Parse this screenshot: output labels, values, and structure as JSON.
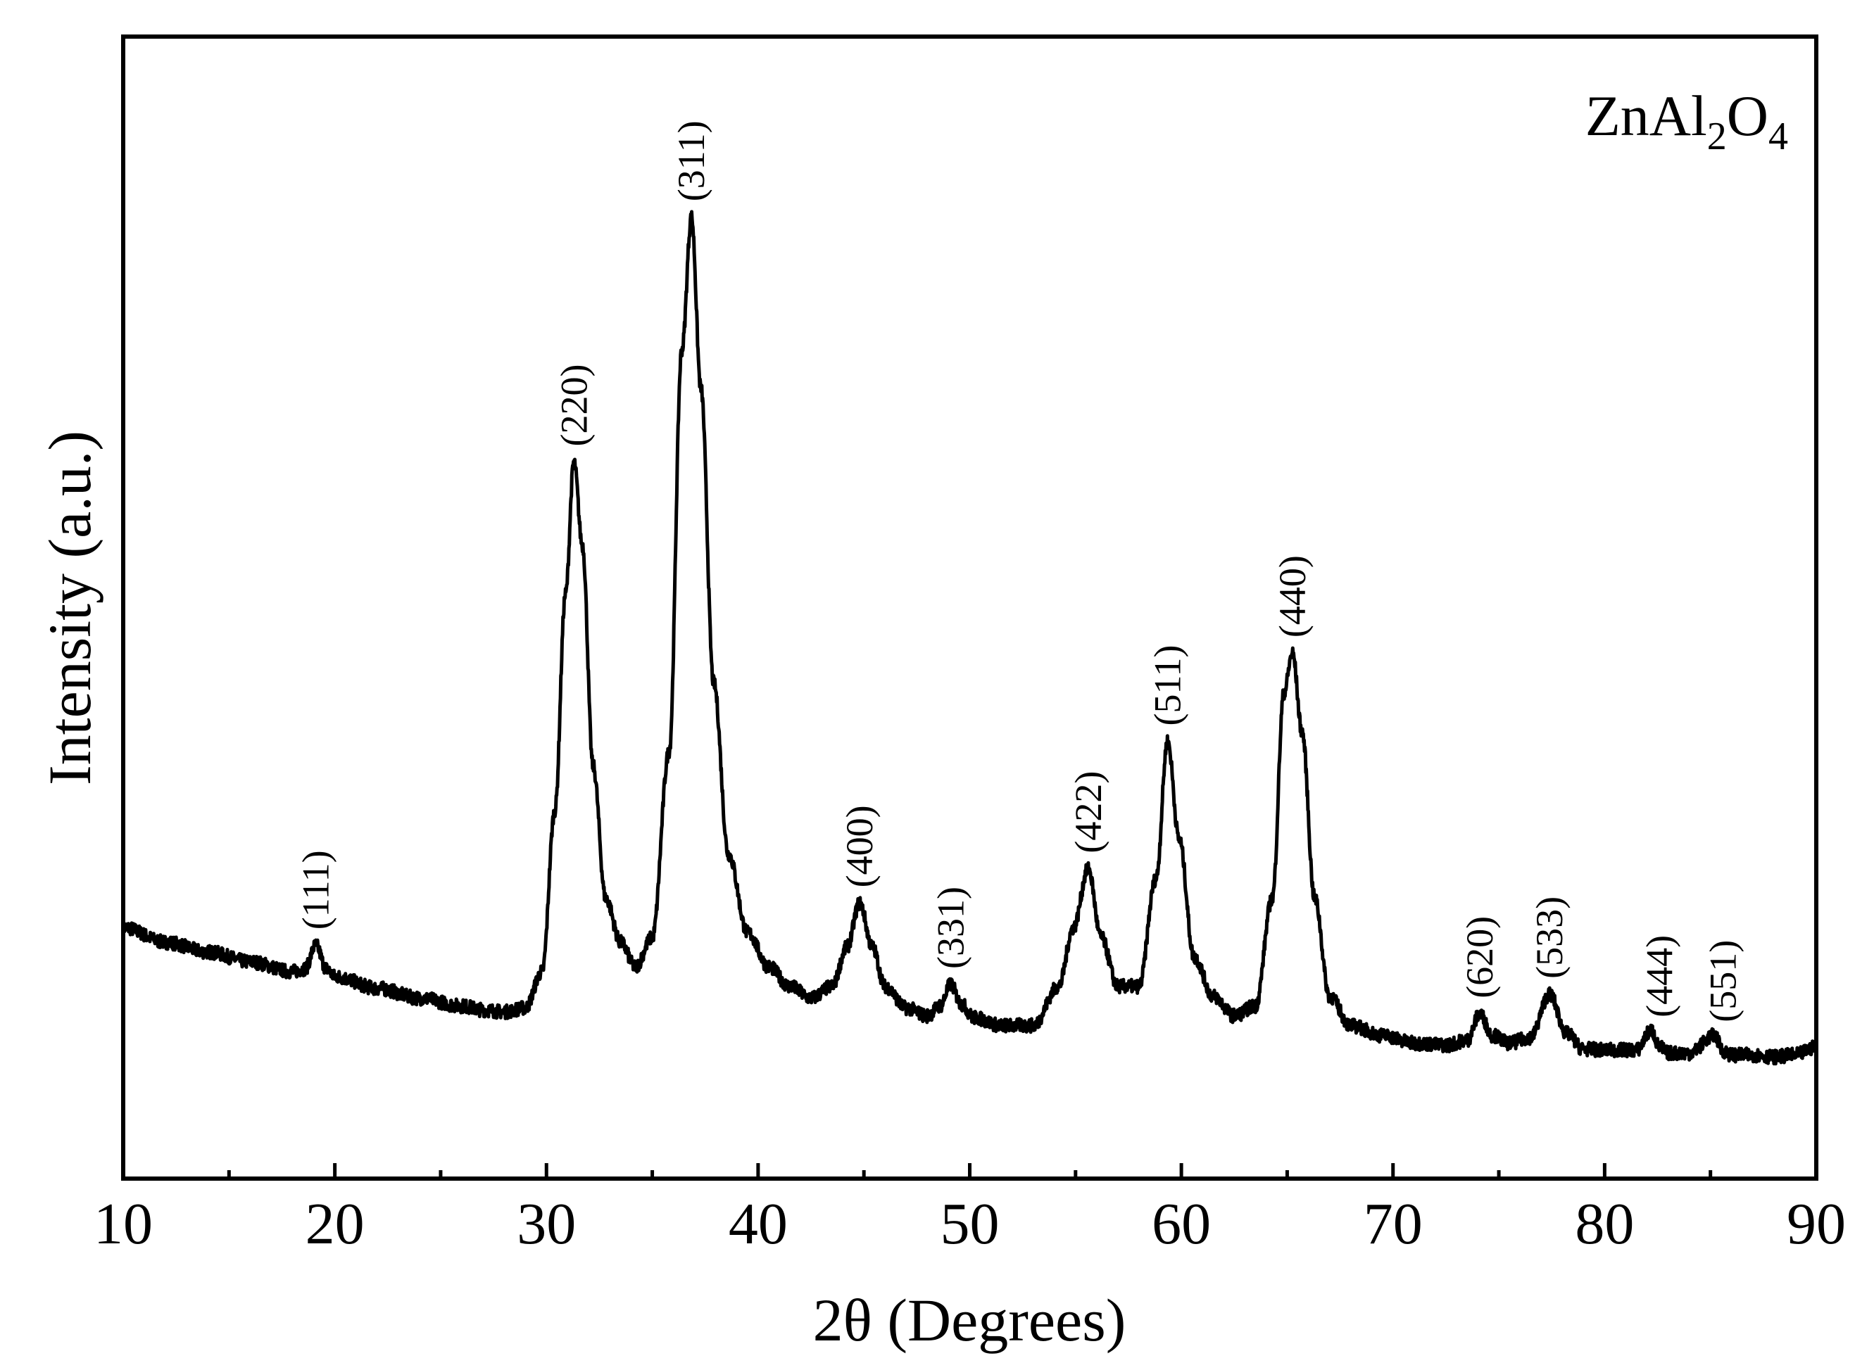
{
  "chart_data": {
    "type": "line",
    "title": "",
    "xlabel": "2θ (Degrees)",
    "ylabel": "Intensity (a.u.)",
    "xlim": [
      10,
      90
    ],
    "ylim": [
      0,
      1000
    ],
    "x_ticks": [
      10,
      20,
      30,
      40,
      50,
      60,
      70,
      80,
      90
    ],
    "y_ticks_shown": false,
    "grid": false,
    "legend": "none",
    "line_color": "#000000",
    "sample_label": {
      "main": "ZnAl",
      "sub1": "2",
      "mid": "O",
      "sub2": "4",
      "position": "top-right"
    },
    "series": [
      {
        "x": [
          10,
          12,
          14,
          16,
          18,
          18.6,
          19.1,
          19.6,
          20,
          22,
          24,
          26,
          27,
          28,
          29,
          29.8,
          30.4,
          30.9,
          31.3,
          31.7,
          32.2,
          32.8,
          33.5,
          34.2,
          35.0,
          35.8,
          36.4,
          36.85,
          37.3,
          37.9,
          38.6,
          39.5,
          40.5,
          41.5,
          42.5,
          43.5,
          44.2,
          44.8,
          45.4,
          46.0,
          47.0,
          48.0,
          48.6,
          49.1,
          49.6,
          50.2,
          51.5,
          53.0,
          54.2,
          54.9,
          55.6,
          56.2,
          57.0,
          58.0,
          58.8,
          59.35,
          59.9,
          60.6,
          61.5,
          62.5,
          63.5,
          64.3,
          64.85,
          65.25,
          65.7,
          66.3,
          67.0,
          68.0,
          69.5,
          71.0,
          72.5,
          73.5,
          74.1,
          74.7,
          75.5,
          76.5,
          77.4,
          78.2,
          79.0,
          80.0,
          81.5,
          82.2,
          82.6,
          83.0,
          84.0,
          85.2,
          85.6,
          86.0,
          87.0,
          88.0,
          89.0,
          90.0
        ],
        "y": [
          170,
          155,
          145,
          135,
          125,
          128,
          152,
          128,
          120,
          108,
          98,
          90,
          86,
          84,
          88,
          125,
          290,
          510,
          645,
          560,
          335,
          200,
          155,
          130,
          160,
          350,
          760,
          895,
          720,
          420,
          245,
          165,
          130,
          110,
          98,
          110,
          150,
          195,
          150,
          110,
          88,
          80,
          90,
          112,
          92,
          78,
          70,
          70,
          110,
          170,
          230,
          160,
          110,
          110,
          220,
          360,
          260,
          140,
          100,
          80,
          90,
          200,
          410,
          450,
          370,
          200,
          100,
          70,
          60,
          52,
          50,
          55,
          82,
          60,
          52,
          58,
          102,
          62,
          46,
          45,
          45,
          65,
          48,
          42,
          42,
          60,
          44,
          40,
          40,
          38,
          40,
          48
        ]
      }
    ],
    "peak_labels": [
      {
        "text": "(111)",
        "x": 19.1
      },
      {
        "text": "(220)",
        "x": 31.3
      },
      {
        "text": "(311)",
        "x": 36.85
      },
      {
        "text": "(400)",
        "x": 44.8
      },
      {
        "text": "(331)",
        "x": 49.1
      },
      {
        "text": "(422)",
        "x": 55.6
      },
      {
        "text": "(511)",
        "x": 59.35
      },
      {
        "text": "(440)",
        "x": 65.25
      },
      {
        "text": "(620)",
        "x": 74.1
      },
      {
        "text": "(533)",
        "x": 77.4
      },
      {
        "text": "(444)",
        "x": 82.6
      },
      {
        "text": "(551)",
        "x": 85.6
      }
    ]
  }
}
